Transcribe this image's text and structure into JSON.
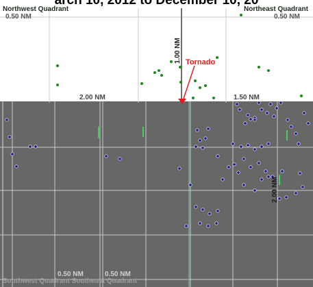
{
  "header": {
    "title_fragment": "arch 10, 2012 to December 10, 20"
  },
  "quadrants": {
    "northwest": "Northwest Quadrant",
    "northeast": "Northeast Quadrant",
    "southwest": "Southwest Quadrant",
    "southeast": "Southeast Quadrant"
  },
  "distance_labels": {
    "top_left_radius": "0.50 NM",
    "top_right_radius": "0.50 NM",
    "west_radius": "2.00 NM",
    "east_radius": "1.50 NM",
    "north_radius": "1.00 NM",
    "east_vertical": "2.00 NM",
    "bottom_left_a": "0.50 NM",
    "bottom_left_b": "0.50 NM"
  },
  "marker": {
    "label": "Tornado",
    "color": "#e11b1b"
  },
  "colors": {
    "north_points": "#1a8a1a",
    "south_points": "#1a1a8c",
    "south_background": "#676767",
    "grid_line": "#c8c8c8",
    "axis_line": "#7a7a7a"
  }
}
